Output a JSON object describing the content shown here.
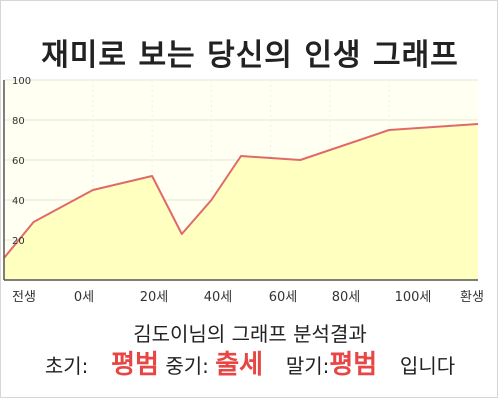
{
  "title": "재미로 보는 당신의 인생 그래프",
  "summary": "김도이님의 그래프 분석결과",
  "result": {
    "early_label": "초기:",
    "early_value": "평범",
    "mid_label": "중기:",
    "mid_value": "출세",
    "late_label": "말기:",
    "late_value": "평범",
    "suffix": "입니다"
  },
  "chart_data": {
    "type": "area",
    "x_tick_labels": [
      "전생",
      "0세",
      "20세",
      "40세",
      "60세",
      "80세",
      "100세",
      "환생"
    ],
    "y_ticks": [
      20,
      40,
      60,
      80,
      100
    ],
    "ylim": [
      0,
      100
    ],
    "points": [
      {
        "x": -30,
        "y": 11
      },
      {
        "x": -20,
        "y": 29
      },
      {
        "x": 0,
        "y": 45
      },
      {
        "x": 20,
        "y": 52
      },
      {
        "x": 30,
        "y": 23
      },
      {
        "x": 40,
        "y": 40
      },
      {
        "x": 50,
        "y": 62
      },
      {
        "x": 70,
        "y": 60
      },
      {
        "x": 80,
        "y": 65
      },
      {
        "x": 100,
        "y": 75
      },
      {
        "x": 130,
        "y": 78
      }
    ],
    "colors": {
      "line": "#e06a6a",
      "fill": "#ffffc0",
      "plot_bg": "#fffff2"
    }
  }
}
